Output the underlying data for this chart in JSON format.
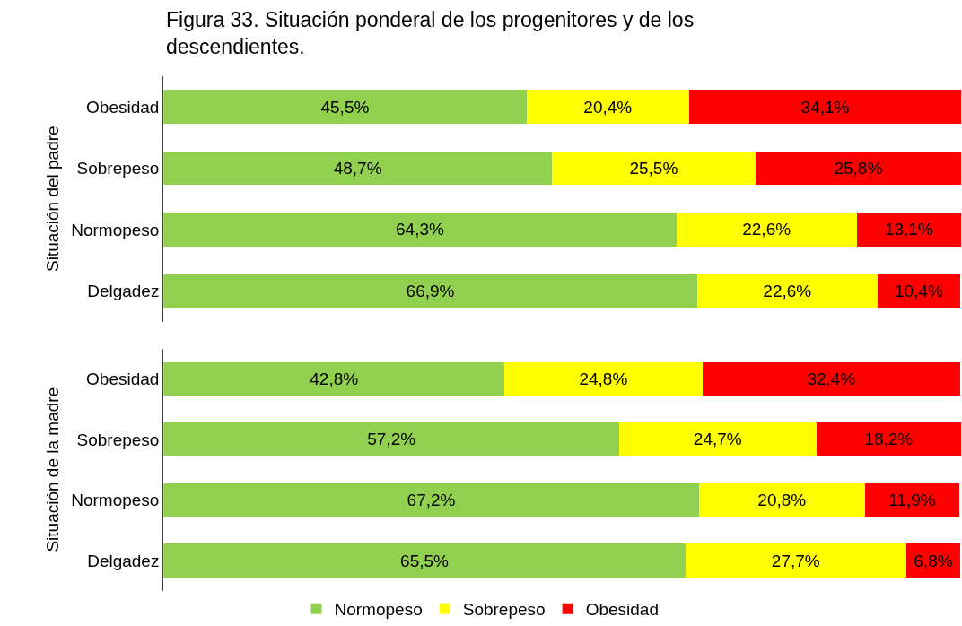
{
  "chart_data": [
    {
      "type": "bar",
      "title": "Figura 33. Situación ponderal de los progenitores y de los\ndescendientes.",
      "ylabel": "Situación del padre",
      "orientation": "horizontal",
      "stacked": true,
      "categories": [
        "Obesidad",
        "Sobrepeso",
        "Normopeso",
        "Delgadez"
      ],
      "xlim": [
        0,
        100.1
      ],
      "tick_labels": "y",
      "legend": "bottom",
      "series": [
        {
          "name": "Normopeso",
          "color": "#92d050",
          "values": [
            45.5,
            48.7,
            64.3,
            66.9
          ],
          "value_labels": [
            "45,5%",
            "48,7%",
            "64,3%",
            "66,9%"
          ]
        },
        {
          "name": "Sobrepeso",
          "color": "#ffff00",
          "values": [
            20.4,
            25.5,
            22.6,
            22.6
          ],
          "value_labels": [
            "20,4%",
            "25,5%",
            "22,6%",
            "22,6%"
          ]
        },
        {
          "name": "Obesidad",
          "color": "#ff0000",
          "values": [
            34.1,
            25.8,
            13.1,
            10.4
          ],
          "value_labels": [
            "34,1%",
            "25,8%",
            "13,1%",
            "10,4%"
          ]
        }
      ]
    },
    {
      "type": "bar",
      "ylabel": "Situación de la madre",
      "orientation": "horizontal",
      "stacked": true,
      "categories": [
        "Obesidad",
        "Sobrepeso",
        "Normopeso",
        "Delgadez"
      ],
      "xlim": [
        0,
        100.2
      ],
      "tick_labels": "y",
      "legend": "bottom",
      "series": [
        {
          "name": "Normopeso",
          "color": "#92d050",
          "values": [
            42.8,
            57.2,
            67.2,
            65.5
          ],
          "value_labels": [
            "42,8%",
            "57,2%",
            "67,2%",
            "65,5%"
          ]
        },
        {
          "name": "Sobrepeso",
          "color": "#ffff00",
          "values": [
            24.8,
            24.7,
            20.8,
            27.7
          ],
          "value_labels": [
            "24,8%",
            "24,7%",
            "20,8%",
            "27,7%"
          ]
        },
        {
          "name": "Obesidad",
          "color": "#ff0000",
          "values": [
            32.4,
            18.2,
            11.9,
            6.8
          ],
          "value_labels": [
            "32,4%",
            "18,2%",
            "11,9%",
            "6,8%"
          ]
        }
      ]
    }
  ]
}
